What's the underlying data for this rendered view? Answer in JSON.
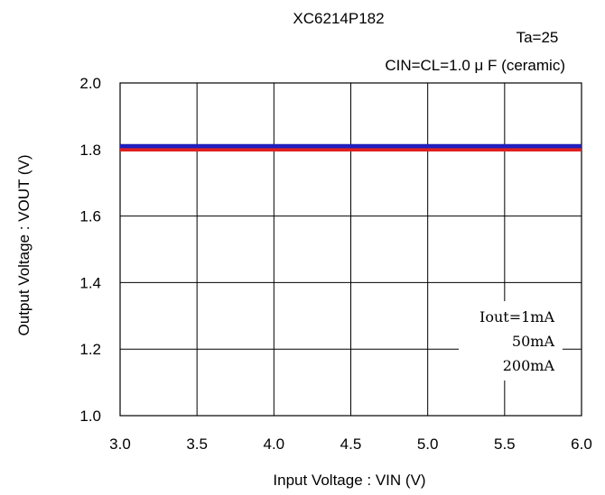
{
  "chart_data": {
    "type": "line",
    "title": "XC6214P182",
    "annotations": [
      "Ta=25",
      "CIN=CL=1.0 μ F  (ceramic)"
    ],
    "xlabel": "Input Voltage : VIN (V)",
    "ylabel": "Output Voltage : VOUT (V)",
    "xlim": [
      3.0,
      6.0
    ],
    "ylim": [
      1.0,
      2.0
    ],
    "x_ticks": [
      "3.0",
      "3.5",
      "4.0",
      "4.5",
      "5.0",
      "5.5",
      "6.0"
    ],
    "y_ticks": [
      "1.0",
      "1.2",
      "1.4",
      "1.6",
      "1.8",
      "2.0"
    ],
    "grid": true,
    "legend_position": "bottom-right",
    "series": [
      {
        "name": "Iout=1mA",
        "color": "#000000",
        "x": [
          3.0,
          6.0
        ],
        "y": [
          1.81,
          1.81
        ]
      },
      {
        "name": "50mA",
        "color": "#1f1fbf",
        "x": [
          3.0,
          6.0
        ],
        "y": [
          1.81,
          1.81
        ]
      },
      {
        "name": "200mA",
        "color": "#e02020",
        "x": [
          3.0,
          6.0
        ],
        "y": [
          1.8,
          1.8
        ]
      }
    ]
  }
}
